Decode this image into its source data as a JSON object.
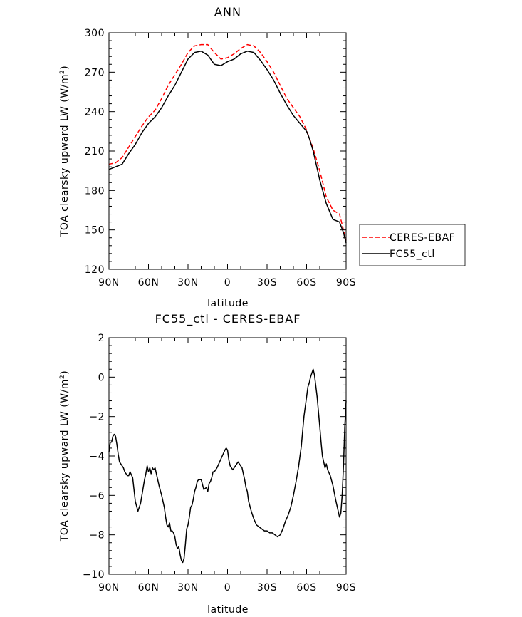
{
  "chart_data": [
    {
      "type": "line",
      "title": "ANN",
      "xlabel": "latitude",
      "ylabel": "TOA clearsky upward LW (W/m",
      "ylabel_sup": "2",
      "ylabel_close": ")",
      "xlim": [
        90,
        -90
      ],
      "ylim": [
        120,
        300
      ],
      "yticks": [
        120,
        150,
        180,
        210,
        240,
        270,
        300
      ],
      "xticks": [
        90,
        60,
        30,
        0,
        -30,
        -60,
        -90
      ],
      "xtick_labels": [
        "90N",
        "60N",
        "30N",
        "0",
        "30S",
        "60S",
        "90S"
      ],
      "legend": [
        "CERES-EBAF",
        "FC55_ctl"
      ],
      "series": [
        {
          "name": "CERES-EBAF",
          "color": "#ff0000",
          "dashed": true,
          "x": [
            90,
            85,
            80,
            75,
            70,
            65,
            60,
            55,
            50,
            45,
            40,
            35,
            30,
            25,
            20,
            15,
            10,
            5,
            0,
            -5,
            -10,
            -15,
            -20,
            -25,
            -30,
            -35,
            -40,
            -45,
            -50,
            -55,
            -60,
            -62,
            -65,
            -70,
            -75,
            -80,
            -85,
            -88,
            -90
          ],
          "y": [
            200,
            201,
            205,
            213,
            221,
            229,
            236,
            241,
            250,
            260,
            268,
            276,
            285,
            290,
            291,
            291,
            285,
            280,
            281,
            284,
            288,
            291,
            290,
            285,
            278,
            270,
            260,
            250,
            243,
            236,
            226,
            220,
            212,
            195,
            175,
            165,
            162,
            150,
            142
          ]
        },
        {
          "name": "FC55_ctl",
          "color": "#000000",
          "dashed": false,
          "x": [
            90,
            85,
            80,
            75,
            70,
            65,
            60,
            55,
            50,
            45,
            40,
            35,
            30,
            25,
            20,
            15,
            10,
            5,
            0,
            -5,
            -10,
            -15,
            -20,
            -25,
            -30,
            -35,
            -40,
            -45,
            -50,
            -55,
            -60,
            -62,
            -65,
            -70,
            -75,
            -80,
            -85,
            -88,
            -90
          ],
          "y": [
            196,
            198,
            200,
            208,
            215,
            224,
            231,
            236,
            243,
            252,
            260,
            270,
            280,
            285,
            286,
            283,
            276,
            275,
            278,
            280,
            284,
            286,
            285,
            279,
            272,
            264,
            254,
            245,
            237,
            231,
            225,
            220,
            210,
            188,
            170,
            158,
            156,
            148,
            140
          ]
        }
      ]
    },
    {
      "type": "line",
      "title": "FC55_ctl - CERES-EBAF",
      "xlabel": "latitude",
      "ylabel": "TOA clearsky upward LW (W/m",
      "ylabel_sup": "2",
      "ylabel_close": ")",
      "xlim": [
        90,
        -90
      ],
      "ylim": [
        -10,
        2
      ],
      "yticks": [
        -10,
        -8,
        -6,
        -4,
        -2,
        0,
        2
      ],
      "ytick_labels": [
        "−10",
        "−8",
        "−6",
        "−4",
        "−2",
        "0",
        "2"
      ],
      "xticks": [
        90,
        60,
        30,
        0,
        -30,
        -60,
        -90
      ],
      "xtick_labels": [
        "90N",
        "60N",
        "30N",
        "0",
        "30S",
        "60S",
        "90S"
      ],
      "series": [
        {
          "name": "FC55_ctl - CERES-EBAF",
          "color": "#000000",
          "x": [
            90,
            89,
            88,
            87,
            86,
            85,
            84,
            83,
            82,
            80,
            79,
            78,
            76,
            75,
            74,
            72,
            71,
            70,
            68,
            66,
            64,
            63,
            62,
            61,
            60,
            59,
            58,
            57,
            56,
            55,
            54,
            52,
            50,
            48,
            47,
            46,
            45,
            44,
            43,
            42,
            41,
            40,
            39,
            38,
            37,
            36,
            35,
            34,
            33,
            32,
            31,
            30,
            29,
            28,
            27,
            26,
            25,
            24,
            23,
            22,
            20,
            18,
            16,
            15,
            14,
            13,
            12,
            11,
            10,
            8,
            6,
            4,
            2,
            1,
            0,
            -1,
            -2,
            -4,
            -6,
            -8,
            -10,
            -11,
            -12,
            -13,
            -14,
            -15,
            -16,
            -18,
            -20,
            -22,
            -24,
            -26,
            -28,
            -30,
            -32,
            -34,
            -36,
            -38,
            -40,
            -42,
            -44,
            -46,
            -48,
            -50,
            -52,
            -54,
            -56,
            -58,
            -60,
            -61,
            -62,
            -63,
            -64,
            -65,
            -66,
            -68,
            -70,
            -71,
            -72,
            -74,
            -75,
            -76,
            -78,
            -80,
            -82,
            -84,
            -85,
            -86,
            -87,
            -88,
            -89,
            -90
          ],
          "y": [
            -3.8,
            -3.3,
            -3.3,
            -3.0,
            -2.9,
            -3.0,
            -3.4,
            -3.9,
            -4.3,
            -4.5,
            -4.6,
            -4.8,
            -5.0,
            -5.0,
            -4.8,
            -5.1,
            -5.7,
            -6.3,
            -6.8,
            -6.4,
            -5.6,
            -5.2,
            -4.9,
            -4.5,
            -4.8,
            -4.6,
            -4.9,
            -4.6,
            -4.7,
            -4.6,
            -4.9,
            -5.5,
            -6.0,
            -6.6,
            -7.1,
            -7.5,
            -7.6,
            -7.4,
            -7.8,
            -7.8,
            -7.9,
            -8.1,
            -8.5,
            -8.7,
            -8.6,
            -9.0,
            -9.3,
            -9.4,
            -9.2,
            -8.5,
            -7.7,
            -7.5,
            -7.1,
            -6.6,
            -6.5,
            -6.2,
            -5.8,
            -5.6,
            -5.3,
            -5.2,
            -5.2,
            -5.7,
            -5.6,
            -5.8,
            -5.4,
            -5.3,
            -5.1,
            -4.8,
            -4.8,
            -4.6,
            -4.3,
            -4.0,
            -3.7,
            -3.6,
            -3.7,
            -4.2,
            -4.5,
            -4.7,
            -4.5,
            -4.3,
            -4.5,
            -4.6,
            -4.9,
            -5.2,
            -5.6,
            -5.8,
            -6.3,
            -6.8,
            -7.2,
            -7.5,
            -7.6,
            -7.7,
            -7.8,
            -7.8,
            -7.9,
            -7.9,
            -8.0,
            -8.1,
            -8.0,
            -7.7,
            -7.3,
            -7.0,
            -6.6,
            -6.0,
            -5.3,
            -4.5,
            -3.5,
            -2.0,
            -1.0,
            -0.5,
            -0.3,
            0.0,
            0.2,
            0.4,
            0.1,
            -1.0,
            -2.5,
            -3.3,
            -4.0,
            -4.6,
            -4.4,
            -4.7,
            -5.0,
            -5.5,
            -6.2,
            -6.8,
            -7.1,
            -6.9,
            -6.0,
            -4.5,
            -2.5,
            -1.2
          ]
        }
      ]
    }
  ]
}
